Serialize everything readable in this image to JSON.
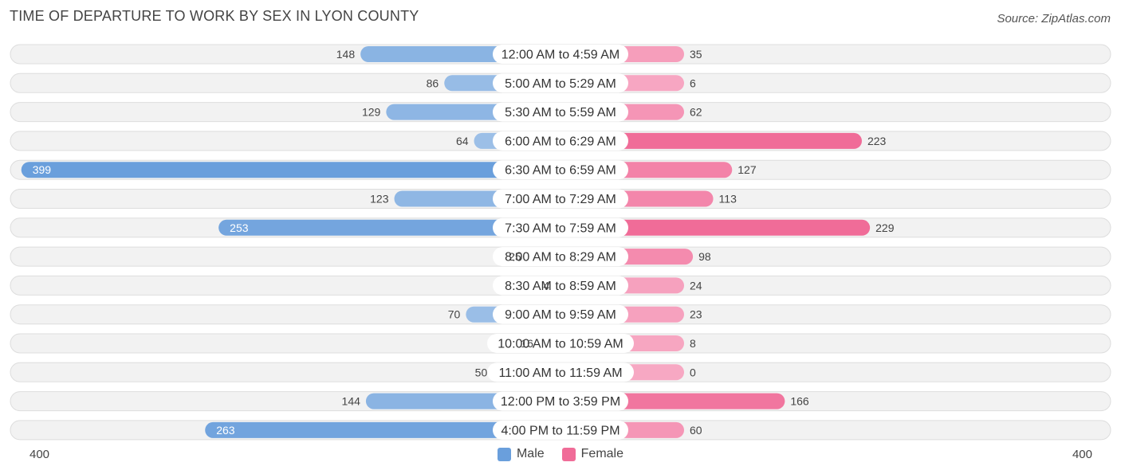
{
  "title": "TIME OF DEPARTURE TO WORK BY SEX IN LYON COUNTY",
  "source": "Source: ZipAtlas.com",
  "colors": {
    "male_light": "#a9c8ea",
    "male_dark": "#6a9fdc",
    "female_light": "#f7a8c3",
    "female_dark": "#f06c98",
    "row_bg": "#f2f2f2",
    "row_border": "#dddddd"
  },
  "chart_data": {
    "type": "bar",
    "orientation": "horizontal-diverging",
    "title": "TIME OF DEPARTURE TO WORK BY SEX IN LYON COUNTY",
    "categories": [
      "12:00 AM to 4:59 AM",
      "5:00 AM to 5:29 AM",
      "5:30 AM to 5:59 AM",
      "6:00 AM to 6:29 AM",
      "6:30 AM to 6:59 AM",
      "7:00 AM to 7:29 AM",
      "7:30 AM to 7:59 AM",
      "8:00 AM to 8:29 AM",
      "8:30 AM to 8:59 AM",
      "9:00 AM to 9:59 AM",
      "10:00 AM to 10:59 AM",
      "11:00 AM to 11:59 AM",
      "12:00 PM to 3:59 PM",
      "4:00 PM to 11:59 PM"
    ],
    "series": [
      {
        "name": "Male",
        "values": [
          148,
          86,
          129,
          64,
          399,
          123,
          253,
          25,
          4,
          70,
          16,
          50,
          144,
          263
        ]
      },
      {
        "name": "Female",
        "values": [
          35,
          6,
          62,
          223,
          127,
          113,
          229,
          98,
          24,
          23,
          8,
          0,
          166,
          60
        ]
      }
    ],
    "axis_max": 400,
    "axis_left_label": "400",
    "axis_right_label": "400",
    "legend": [
      "Male",
      "Female"
    ],
    "legend_position": "bottom-center"
  }
}
